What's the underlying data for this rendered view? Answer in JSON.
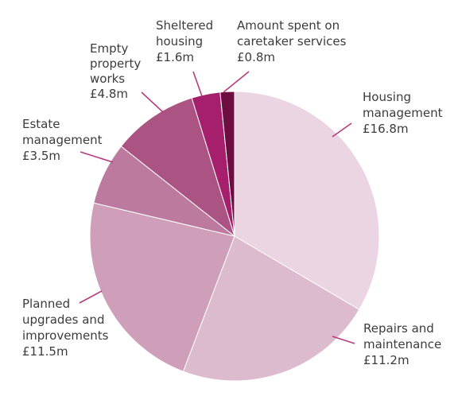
{
  "chart_data": {
    "type": "pie",
    "title": "",
    "start_angle_deg": 0,
    "direction": "clockwise",
    "slices": [
      {
        "label_lines": [
          "Housing",
          "management",
          "£16.8m"
        ],
        "value": 16.8,
        "color": "#ecd5e2"
      },
      {
        "label_lines": [
          "Repairs and",
          "maintenance",
          "£11.2m"
        ],
        "value": 11.2,
        "color": "#ddbbcf"
      },
      {
        "label_lines": [
          "Planned",
          "upgrades and",
          "improvements",
          "£11.5m"
        ],
        "value": 11.5,
        "color": "#cf9fba"
      },
      {
        "label_lines": [
          "Estate",
          "management",
          "£3.5m"
        ],
        "value": 3.5,
        "color": "#bd7a9f"
      },
      {
        "label_lines": [
          "Empty",
          "property",
          "works",
          "£4.8m"
        ],
        "value": 4.8,
        "color": "#ab5484"
      },
      {
        "label_lines": [
          "Sheltered",
          "housing",
          "£1.6m"
        ],
        "value": 1.6,
        "color": "#a61f6d"
      },
      {
        "label_lines": [
          "Amount spent on",
          "caretaker services",
          "£0.8m"
        ],
        "value": 0.8,
        "color": "#6e0d42"
      }
    ],
    "slice_border_color": "#ffffff",
    "leader_color": "#b73a7e",
    "label_color": "#3c3c3c"
  }
}
